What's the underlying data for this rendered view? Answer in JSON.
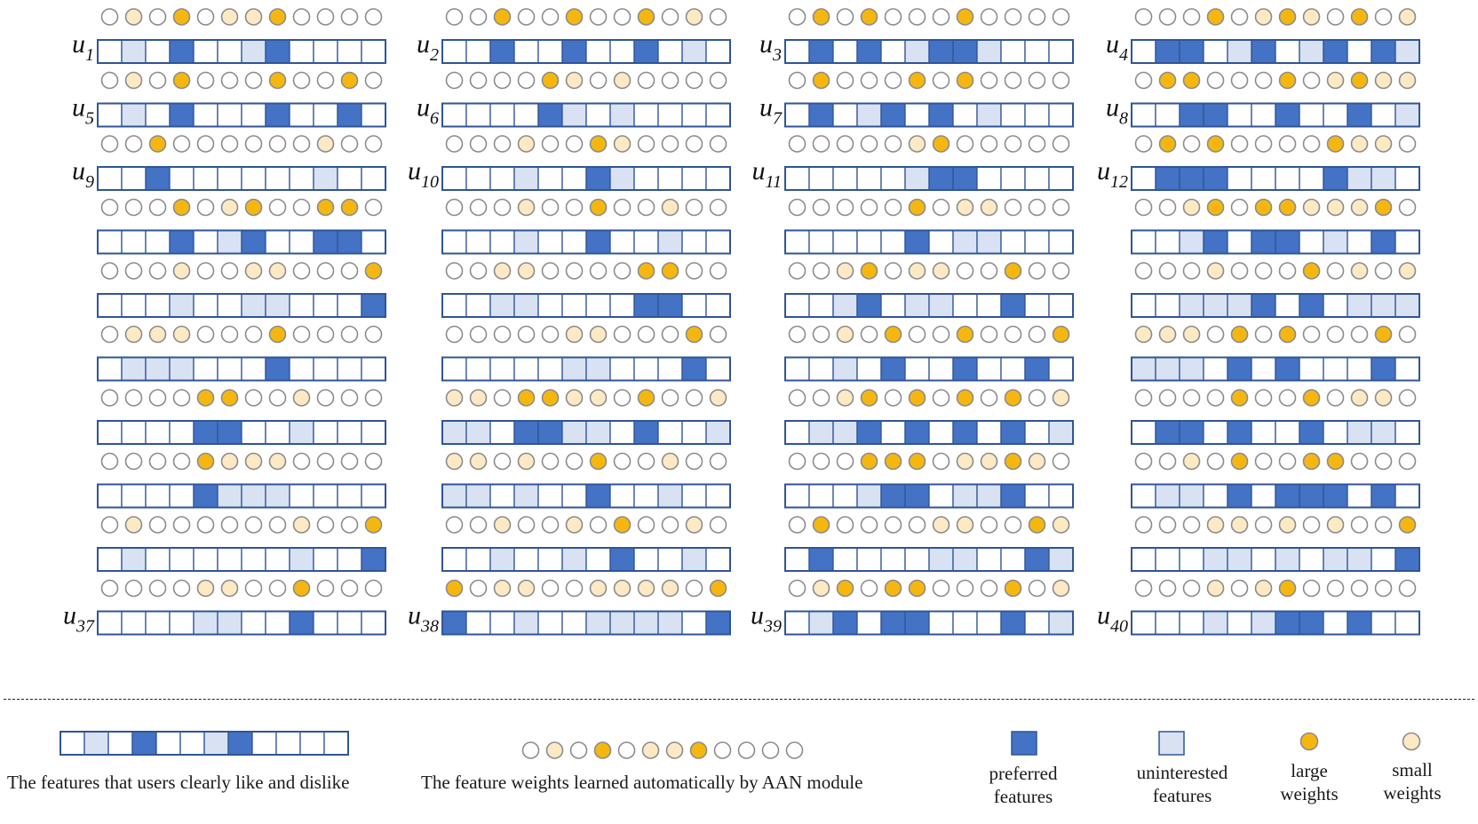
{
  "colors": {
    "preferred": "#4472c4",
    "uninterested": "#d9e2f3",
    "neutral": "#ffffff",
    "border": "#2f5597",
    "large_weight": "#f5b70f",
    "small_weight": "#fde9c4",
    "no_weight": "#ffffff",
    "circle_stroke": "#8c8c8c"
  },
  "encoding": {
    "feature_cells": {
      "0": "neutral",
      "1": "uninterested",
      "2": "preferred"
    },
    "weight_circles": {
      "0": "none",
      "1": "small",
      "2": "large"
    }
  },
  "users": [
    {
      "label": "u",
      "sub": "1",
      "col": 0,
      "row": 0,
      "cells": "010200120000",
      "weights": "010201120000"
    },
    {
      "label": "u",
      "sub": "2",
      "col": 1,
      "row": 0,
      "cells": "002002002010",
      "weights": "002002002010"
    },
    {
      "label": "u",
      "sub": "3",
      "col": 2,
      "row": 0,
      "cells": "020201221000",
      "weights": "020200020000"
    },
    {
      "label": "u",
      "sub": "4",
      "col": 3,
      "row": 0,
      "cells": "022012012021",
      "weights": "000201210201"
    },
    {
      "label": "u",
      "sub": "5",
      "col": 0,
      "row": 1,
      "cells": "010200020020",
      "weights": "010200020020"
    },
    {
      "label": "u",
      "sub": "6",
      "col": 1,
      "row": 1,
      "cells": "000021010000",
      "weights": "000021010000"
    },
    {
      "label": "u",
      "sub": "7",
      "col": 2,
      "row": 1,
      "cells": "020120201000",
      "weights": "020002020000"
    },
    {
      "label": "u",
      "sub": "8",
      "col": 3,
      "row": 1,
      "cells": "002200200201",
      "weights": "022000201211"
    },
    {
      "label": "u",
      "sub": "9",
      "col": 0,
      "row": 2,
      "cells": "002000000100",
      "weights": "002000000100"
    },
    {
      "label": "u",
      "sub": "10",
      "col": 1,
      "row": 2,
      "cells": "000100210000",
      "weights": "000100210000"
    },
    {
      "label": "u",
      "sub": "11",
      "col": 2,
      "row": 2,
      "cells": "000001220000",
      "weights": "000001200000"
    },
    {
      "label": "u",
      "sub": "12",
      "col": 3,
      "row": 2,
      "cells": "022200002110",
      "weights": "020200002110"
    },
    {
      "label": "",
      "sub": "",
      "col": 0,
      "row": 3,
      "cells": "000201200220",
      "weights": "000201200220"
    },
    {
      "label": "",
      "sub": "",
      "col": 1,
      "row": 3,
      "cells": "000100200100",
      "weights": "000100200100"
    },
    {
      "label": "",
      "sub": "",
      "col": 2,
      "row": 3,
      "cells": "000002011000",
      "weights": "000002011000"
    },
    {
      "label": "",
      "sub": "",
      "col": 3,
      "row": 3,
      "cells": "001202201020",
      "weights": "001202211120"
    },
    {
      "label": "",
      "sub": "",
      "col": 0,
      "row": 4,
      "cells": "000100110002",
      "weights": "000100110002"
    },
    {
      "label": "",
      "sub": "",
      "col": 1,
      "row": 4,
      "cells": "001100002200",
      "weights": "001100002200"
    },
    {
      "label": "",
      "sub": "",
      "col": 2,
      "row": 4,
      "cells": "001201100200",
      "weights": "001201100200"
    },
    {
      "label": "",
      "sub": "",
      "col": 3,
      "row": 4,
      "cells": "001112020111",
      "weights": "000100020101"
    },
    {
      "label": "",
      "sub": "",
      "col": 0,
      "row": 5,
      "cells": "011100020000",
      "weights": "011100020000"
    },
    {
      "label": "",
      "sub": "",
      "col": 1,
      "row": 5,
      "cells": "000001100020",
      "weights": "000001100020"
    },
    {
      "label": "",
      "sub": "",
      "col": 2,
      "row": 5,
      "cells": "001020020020",
      "weights": "001020020002"
    },
    {
      "label": "",
      "sub": "",
      "col": 3,
      "row": 5,
      "cells": "111020200020",
      "weights": "111020200020"
    },
    {
      "label": "",
      "sub": "",
      "col": 0,
      "row": 6,
      "cells": "000022001000",
      "weights": "000022001000"
    },
    {
      "label": "",
      "sub": "",
      "col": 1,
      "row": 6,
      "cells": "110221102001",
      "weights": "110221102001"
    },
    {
      "label": "",
      "sub": "",
      "col": 2,
      "row": 6,
      "cells": "011202020201",
      "weights": "001202020201"
    },
    {
      "label": "",
      "sub": "",
      "col": 3,
      "row": 6,
      "cells": "022020020110",
      "weights": "000020020110"
    },
    {
      "label": "",
      "sub": "",
      "col": 0,
      "row": 7,
      "cells": "000021110000",
      "weights": "000021110000"
    },
    {
      "label": "",
      "sub": "",
      "col": 1,
      "row": 7,
      "cells": "110100200100",
      "weights": "110100200100"
    },
    {
      "label": "",
      "sub": "",
      "col": 2,
      "row": 7,
      "cells": "000122011200",
      "weights": "000222011210"
    },
    {
      "label": "",
      "sub": "",
      "col": 3,
      "row": 7,
      "cells": "011020222020",
      "weights": "001020022000"
    },
    {
      "label": "",
      "sub": "",
      "col": 0,
      "row": 8,
      "cells": "010000001002",
      "weights": "010000001002"
    },
    {
      "label": "",
      "sub": "",
      "col": 1,
      "row": 8,
      "cells": "001001020010",
      "weights": "001001020010"
    },
    {
      "label": "",
      "sub": "",
      "col": 2,
      "row": 8,
      "cells": "020000110021",
      "weights": "020000110021"
    },
    {
      "label": "",
      "sub": "",
      "col": 3,
      "row": 8,
      "cells": "000110101102",
      "weights": "000110101002"
    },
    {
      "label": "u",
      "sub": "37",
      "col": 0,
      "row": 9,
      "cells": "000011002000",
      "weights": "000011002000"
    },
    {
      "label": "u",
      "sub": "38",
      "col": 1,
      "row": 9,
      "cells": "200100111102",
      "weights": "201100111102"
    },
    {
      "label": "u",
      "sub": "39",
      "col": 2,
      "row": 9,
      "cells": "012022000201",
      "weights": "012022000201"
    },
    {
      "label": "u",
      "sub": "40",
      "col": 3,
      "row": 9,
      "cells": "000101220200",
      "weights": "000101200000"
    }
  ],
  "legend": {
    "example_cells": "010200120000",
    "example_weights": "010201120000",
    "cells_caption": "The features that users clearly like and dislike",
    "weights_caption": "The feature weights learned automatically by AAN module",
    "preferred_line1": "preferred",
    "preferred_line2": "features",
    "uninterested_line1": "uninterested",
    "uninterested_line2": "features",
    "large_line1": "large",
    "large_line2": "weights",
    "small_line1": "small",
    "small_line2": "weights"
  }
}
